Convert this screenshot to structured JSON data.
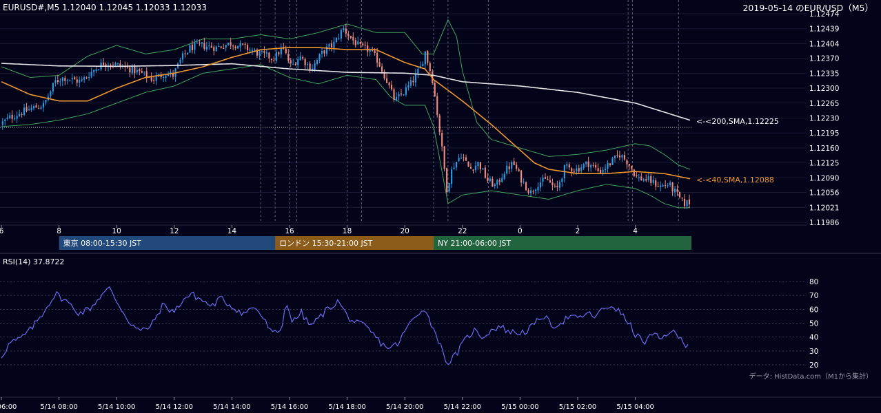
{
  "header": {
    "symbol_info": "EURUSD#,M5 1.12040 1.12045 1.12033 1.12033",
    "date_title": "2019-05-14 のEUR/USD（M5）"
  },
  "colors": {
    "background": "#03031a",
    "candle_up": "#2b9be0",
    "candle_down": "#f08a7c",
    "bollinger": "#3fa860",
    "sma40": "#f0982e",
    "sma200": "#e8e8ea",
    "rsi": "#6b6cf0",
    "tokyo": "#22497c",
    "london": "#8c5c1a",
    "ny": "#22643d"
  },
  "price_axis": {
    "ticks": [
      "1.12474",
      "1.12439",
      "1.12404",
      "1.12370",
      "1.12335",
      "1.12300",
      "1.12265",
      "1.12230",
      "1.12195",
      "1.12160",
      "1.12125",
      "1.12090",
      "1.12056",
      "1.12021",
      "1.11986"
    ],
    "range": [
      1.11986,
      1.12474
    ]
  },
  "hour_axis": {
    "labels": [
      "6",
      "8",
      "10",
      "12",
      "14",
      "16",
      "18",
      "20",
      "22",
      "0",
      "2",
      "4"
    ]
  },
  "sessions": [
    {
      "label": "東京 08:00-15:30 JST",
      "color": "#22497c"
    },
    {
      "label": "ロンドン 15:30-21:00 JST",
      "color": "#8c5c1a"
    },
    {
      "label": "NY 21:00-06:00 JST",
      "color": "#22643d"
    }
  ],
  "sma200_label": "<-<200,SMA,1.12225",
  "sma40_label": "<-<40,SMA,1.12088",
  "rsi": {
    "title": "RSI(14) 37.8722",
    "ticks": [
      "80",
      "70",
      "60",
      "50",
      "40",
      "30",
      "20"
    ],
    "range": [
      20,
      80
    ]
  },
  "source_note": "データ: HistData.com（M1から集計）",
  "time_axis": {
    "labels": [
      "06:00",
      "5/14 08:00",
      "5/14 10:00",
      "5/14 12:00",
      "5/14 14:00",
      "5/14 16:00",
      "5/14 18:00",
      "5/14 20:00",
      "5/14 22:00",
      "5/15 00:00",
      "5/15 02:00",
      "5/15 04:00"
    ]
  },
  "chart_data": {
    "type": "candlestick",
    "x_unit": "hour (JST)",
    "price_anchors": [
      [
        6.0,
        1.12215
      ],
      [
        6.3,
        1.1223
      ],
      [
        6.8,
        1.12245
      ],
      [
        7.2,
        1.12255
      ],
      [
        7.5,
        1.1226
      ],
      [
        7.7,
        1.12285
      ],
      [
        7.9,
        1.12315
      ],
      [
        8.2,
        1.12325
      ],
      [
        8.5,
        1.1232
      ],
      [
        8.8,
        1.12315
      ],
      [
        9.2,
        1.1234
      ],
      [
        9.6,
        1.1236
      ],
      [
        10.0,
        1.12355
      ],
      [
        10.5,
        1.12345
      ],
      [
        10.9,
        1.12335
      ],
      [
        11.3,
        1.1232
      ],
      [
        11.7,
        1.12335
      ],
      [
        12.0,
        1.1233
      ],
      [
        12.3,
        1.1237
      ],
      [
        12.6,
        1.12395
      ],
      [
        13.0,
        1.124
      ],
      [
        13.5,
        1.12395
      ],
      [
        14.0,
        1.12405
      ],
      [
        14.5,
        1.12395
      ],
      [
        15.0,
        1.1238
      ],
      [
        15.5,
        1.1237
      ],
      [
        15.8,
        1.12395
      ],
      [
        16.1,
        1.1235
      ],
      [
        16.4,
        1.12375
      ],
      [
        16.8,
        1.12345
      ],
      [
        17.2,
        1.12385
      ],
      [
        17.6,
        1.12405
      ],
      [
        17.9,
        1.1244
      ],
      [
        18.2,
        1.12415
      ],
      [
        18.5,
        1.12395
      ],
      [
        18.8,
        1.1239
      ],
      [
        19.1,
        1.12365
      ],
      [
        19.4,
        1.1232
      ],
      [
        19.7,
        1.1227
      ],
      [
        20.0,
        1.1229
      ],
      [
        20.3,
        1.12315
      ],
      [
        20.6,
        1.1235
      ],
      [
        20.75,
        1.12385
      ],
      [
        21.0,
        1.1232
      ],
      [
        21.15,
        1.1225
      ],
      [
        21.3,
        1.12175
      ],
      [
        21.5,
        1.12065
      ],
      [
        21.7,
        1.12115
      ],
      [
        22.0,
        1.12145
      ],
      [
        22.3,
        1.1211
      ],
      [
        22.6,
        1.12125
      ],
      [
        22.9,
        1.12085
      ],
      [
        23.2,
        1.1207
      ],
      [
        23.5,
        1.12105
      ],
      [
        23.8,
        1.12125
      ],
      [
        24.1,
        1.12085
      ],
      [
        24.4,
        1.12055
      ],
      [
        24.7,
        1.1208
      ],
      [
        25.0,
        1.12085
      ],
      [
        25.3,
        1.1206
      ],
      [
        25.6,
        1.12115
      ],
      [
        26.0,
        1.1211
      ],
      [
        26.4,
        1.12125
      ],
      [
        26.8,
        1.12105
      ],
      [
        27.1,
        1.1212
      ],
      [
        27.5,
        1.12145
      ],
      [
        27.8,
        1.12125
      ],
      [
        28.1,
        1.1209
      ],
      [
        28.5,
        1.12085
      ],
      [
        28.9,
        1.1207
      ],
      [
        29.2,
        1.12075
      ],
      [
        29.5,
        1.1205
      ],
      [
        29.7,
        1.1203
      ],
      [
        29.9,
        1.12033
      ]
    ],
    "sma40_anchors": [
      [
        6.0,
        1.12315
      ],
      [
        7.0,
        1.12285
      ],
      [
        8.0,
        1.1227
      ],
      [
        9.0,
        1.1227
      ],
      [
        10.0,
        1.123
      ],
      [
        11.0,
        1.12325
      ],
      [
        12.0,
        1.12335
      ],
      [
        13.0,
        1.1235
      ],
      [
        14.0,
        1.12372
      ],
      [
        15.0,
        1.1239
      ],
      [
        16.0,
        1.12395
      ],
      [
        17.0,
        1.12395
      ],
      [
        18.0,
        1.1239
      ],
      [
        19.0,
        1.1239
      ],
      [
        20.0,
        1.1236
      ],
      [
        20.7,
        1.12345
      ],
      [
        21.0,
        1.1232
      ],
      [
        22.0,
        1.1227
      ],
      [
        23.0,
        1.12215
      ],
      [
        24.0,
        1.12155
      ],
      [
        24.5,
        1.12125
      ],
      [
        25.0,
        1.1211
      ],
      [
        26.0,
        1.121
      ],
      [
        27.0,
        1.121
      ],
      [
        28.0,
        1.12105
      ],
      [
        29.0,
        1.121
      ],
      [
        29.9,
        1.12088
      ]
    ],
    "sma200_anchors": [
      [
        6.0,
        1.12358
      ],
      [
        8.0,
        1.12352
      ],
      [
        10.0,
        1.12351
      ],
      [
        12.0,
        1.12353
      ],
      [
        14.0,
        1.12357
      ],
      [
        16.0,
        1.12345
      ],
      [
        18.0,
        1.12337
      ],
      [
        20.0,
        1.12335
      ],
      [
        21.0,
        1.1233
      ],
      [
        22.0,
        1.12315
      ],
      [
        24.0,
        1.12305
      ],
      [
        26.0,
        1.1229
      ],
      [
        28.0,
        1.12265
      ],
      [
        29.9,
        1.12225
      ]
    ],
    "bb_upper_anchors": [
      [
        6.0,
        1.1235
      ],
      [
        7.0,
        1.12325
      ],
      [
        8.0,
        1.1233
      ],
      [
        9.0,
        1.12375
      ],
      [
        10.0,
        1.124
      ],
      [
        11.0,
        1.1238
      ],
      [
        12.0,
        1.1239
      ],
      [
        13.0,
        1.12415
      ],
      [
        14.0,
        1.12415
      ],
      [
        15.0,
        1.12425
      ],
      [
        16.0,
        1.12415
      ],
      [
        17.0,
        1.1243
      ],
      [
        18.0,
        1.1245
      ],
      [
        19.0,
        1.1243
      ],
      [
        20.0,
        1.1243
      ],
      [
        20.6,
        1.1238
      ],
      [
        21.0,
        1.1238
      ],
      [
        21.5,
        1.1246
      ],
      [
        21.8,
        1.1242
      ],
      [
        22.0,
        1.1234
      ],
      [
        22.5,
        1.1222
      ],
      [
        23.0,
        1.1218
      ],
      [
        24.0,
        1.1216
      ],
      [
        25.0,
        1.1214
      ],
      [
        26.0,
        1.12145
      ],
      [
        27.0,
        1.12155
      ],
      [
        28.0,
        1.1217
      ],
      [
        28.5,
        1.12165
      ],
      [
        29.0,
        1.12145
      ],
      [
        29.5,
        1.1212
      ],
      [
        29.9,
        1.1211
      ]
    ],
    "bb_lower_anchors": [
      [
        6.0,
        1.1221
      ],
      [
        7.0,
        1.12215
      ],
      [
        8.0,
        1.12225
      ],
      [
        9.0,
        1.1224
      ],
      [
        10.0,
        1.12265
      ],
      [
        11.0,
        1.1229
      ],
      [
        12.0,
        1.12305
      ],
      [
        13.0,
        1.12335
      ],
      [
        14.0,
        1.12345
      ],
      [
        15.0,
        1.12355
      ],
      [
        16.0,
        1.12325
      ],
      [
        17.0,
        1.1231
      ],
      [
        18.0,
        1.1233
      ],
      [
        19.0,
        1.1232
      ],
      [
        19.5,
        1.1228
      ],
      [
        20.0,
        1.1226
      ],
      [
        20.7,
        1.1226
      ],
      [
        21.0,
        1.1221
      ],
      [
        21.5,
        1.1203
      ],
      [
        22.0,
        1.1205
      ],
      [
        23.0,
        1.1206
      ],
      [
        24.0,
        1.1205
      ],
      [
        25.0,
        1.1204
      ],
      [
        26.0,
        1.1206
      ],
      [
        27.0,
        1.12075
      ],
      [
        28.0,
        1.12065
      ],
      [
        28.5,
        1.1205
      ],
      [
        29.0,
        1.1203
      ],
      [
        29.5,
        1.1202
      ],
      [
        29.9,
        1.1202
      ]
    ],
    "rsi_anchors": [
      [
        6.0,
        26
      ],
      [
        6.3,
        36
      ],
      [
        6.6,
        38
      ],
      [
        7.0,
        45
      ],
      [
        7.4,
        56
      ],
      [
        7.7,
        66
      ],
      [
        7.9,
        71
      ],
      [
        8.3,
        65
      ],
      [
        8.7,
        57
      ],
      [
        9.1,
        61
      ],
      [
        9.5,
        71
      ],
      [
        9.75,
        75
      ],
      [
        10.0,
        66
      ],
      [
        10.4,
        52
      ],
      [
        10.8,
        44
      ],
      [
        11.2,
        48
      ],
      [
        11.6,
        63
      ],
      [
        12.0,
        58
      ],
      [
        12.3,
        67
      ],
      [
        12.6,
        71
      ],
      [
        13.0,
        66
      ],
      [
        13.3,
        62
      ],
      [
        13.6,
        68
      ],
      [
        14.0,
        62
      ],
      [
        14.4,
        57
      ],
      [
        14.8,
        62
      ],
      [
        15.1,
        53
      ],
      [
        15.4,
        42
      ],
      [
        15.7,
        45
      ],
      [
        15.9,
        66
      ],
      [
        16.1,
        50
      ],
      [
        16.4,
        58
      ],
      [
        16.7,
        48
      ],
      [
        17.0,
        53
      ],
      [
        17.3,
        60
      ],
      [
        17.7,
        66
      ],
      [
        18.0,
        55
      ],
      [
        18.3,
        50
      ],
      [
        18.6,
        48
      ],
      [
        18.9,
        42
      ],
      [
        19.2,
        35
      ],
      [
        19.5,
        32
      ],
      [
        19.8,
        36
      ],
      [
        20.1,
        48
      ],
      [
        20.4,
        55
      ],
      [
        20.65,
        62
      ],
      [
        20.9,
        50
      ],
      [
        21.1,
        42
      ],
      [
        21.3,
        30
      ],
      [
        21.5,
        21
      ],
      [
        21.8,
        28
      ],
      [
        22.1,
        38
      ],
      [
        22.4,
        45
      ],
      [
        22.7,
        40
      ],
      [
        23.0,
        45
      ],
      [
        23.3,
        48
      ],
      [
        23.6,
        44
      ],
      [
        23.9,
        43
      ],
      [
        24.2,
        44
      ],
      [
        24.5,
        49
      ],
      [
        24.8,
        56
      ],
      [
        25.1,
        48
      ],
      [
        25.4,
        50
      ],
      [
        25.7,
        55
      ],
      [
        26.0,
        53
      ],
      [
        26.3,
        57
      ],
      [
        26.6,
        55
      ],
      [
        26.9,
        60
      ],
      [
        27.2,
        63
      ],
      [
        27.5,
        57
      ],
      [
        27.8,
        49
      ],
      [
        28.0,
        42
      ],
      [
        28.3,
        36
      ],
      [
        28.6,
        42
      ],
      [
        28.9,
        38
      ],
      [
        29.2,
        45
      ],
      [
        29.5,
        40
      ],
      [
        29.8,
        34
      ],
      [
        29.9,
        38
      ]
    ],
    "y_range": [
      1.11986,
      1.12474
    ],
    "x_range": [
      6,
      30
    ]
  }
}
